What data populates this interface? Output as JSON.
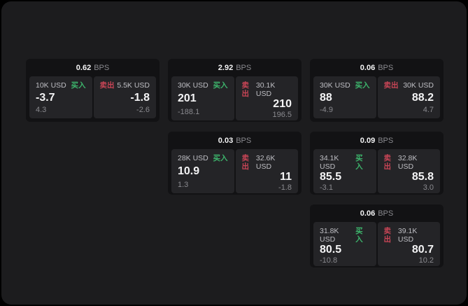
{
  "labels": {
    "bps_unit": "BPS",
    "buy": "买入",
    "sell": "卖出"
  },
  "colors": {
    "buy_green": "#3db56c",
    "sell_red": "#c84556",
    "background": "#000000",
    "panel": "#1c1c1e",
    "card": "#121214",
    "tile": "#242427",
    "value_text": "#f4f4f5",
    "muted_text": "#8a8a8f"
  },
  "cards": [
    {
      "bps": "0.62",
      "buy": {
        "size": "10K USD",
        "value": "-3.7",
        "delta": "4.3"
      },
      "sell": {
        "size": "5.5K USD",
        "value": "-1.8",
        "delta": "-2.6"
      }
    },
    {
      "bps": "2.92",
      "buy": {
        "size": "30K USD",
        "value": "201",
        "delta": "-188.1"
      },
      "sell": {
        "size": "30.1K USD",
        "value": "210",
        "delta": "196.5"
      }
    },
    {
      "bps": "0.06",
      "buy": {
        "size": "30K USD",
        "value": "88",
        "delta": "-4.9"
      },
      "sell": {
        "size": "30K USD",
        "value": "88.2",
        "delta": "4.7"
      }
    },
    {
      "bps": "0.03",
      "buy": {
        "size": "28K USD",
        "value": "10.9",
        "delta": "1.3"
      },
      "sell": {
        "size": "32.6K USD",
        "value": "11",
        "delta": "-1.8"
      }
    },
    {
      "bps": "0.09",
      "buy": {
        "size": "34.1K USD",
        "value": "85.5",
        "delta": "-3.1"
      },
      "sell": {
        "size": "32.8K USD",
        "value": "85.8",
        "delta": "3.0"
      }
    },
    {
      "bps": "0.06",
      "buy": {
        "size": "31.8K USD",
        "value": "80.5",
        "delta": "-10.8"
      },
      "sell": {
        "size": "39.1K USD",
        "value": "80.7",
        "delta": "10.2"
      }
    }
  ]
}
